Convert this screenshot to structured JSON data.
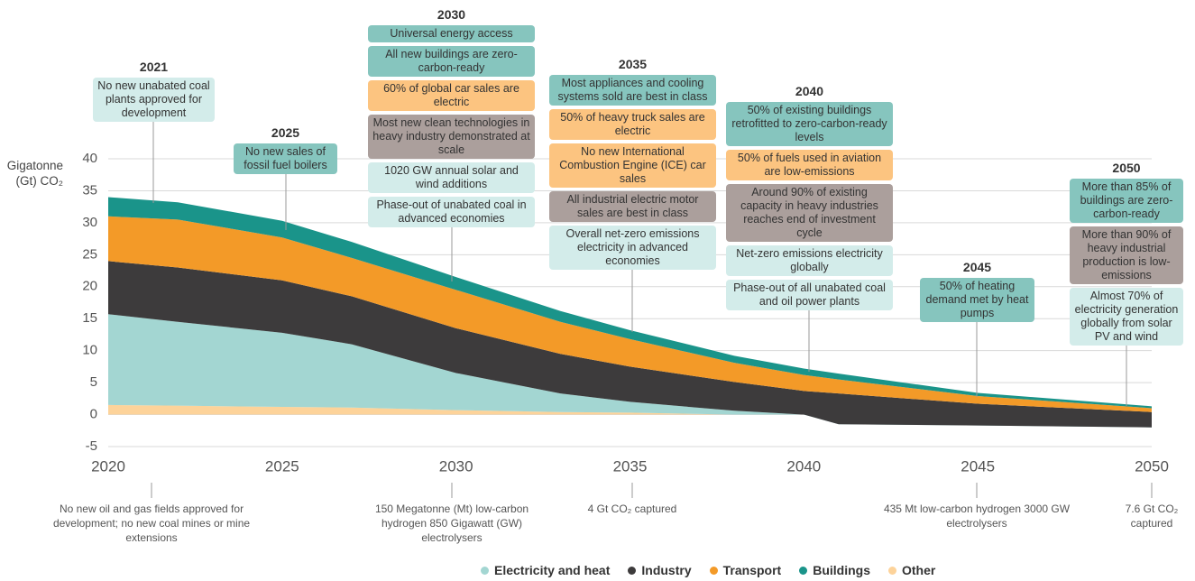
{
  "chart_data": {
    "type": "area",
    "stacked": true,
    "y_label": "Gigatonne (Gt) CO₂",
    "x": [
      2020,
      2022,
      2025,
      2027,
      2030,
      2033,
      2035,
      2038,
      2040,
      2041,
      2045,
      2050
    ],
    "xlim": [
      2020,
      2050
    ],
    "xticks": [
      2020,
      2025,
      2030,
      2035,
      2040,
      2045,
      2050
    ],
    "ylim": [
      -5,
      40
    ],
    "yticks": [
      -5,
      0,
      5,
      10,
      15,
      20,
      25,
      30,
      35,
      40
    ],
    "grid": true,
    "series": [
      {
        "name": "Other",
        "color": "#fdd39a",
        "values": [
          1.5,
          1.4,
          1.2,
          1.1,
          0.7,
          0.4,
          0.3,
          0,
          0,
          0,
          0,
          0
        ]
      },
      {
        "name": "Electricity and heat",
        "color": "#a3d6d2",
        "values": [
          14.2,
          13.1,
          11.6,
          9.9,
          5.8,
          2.9,
          1.7,
          0.6,
          0,
          -1.5,
          -1.7,
          -2
        ]
      },
      {
        "name": "Industry",
        "color": "#3d3b3c",
        "values": [
          8.3,
          8.5,
          8.2,
          7.5,
          7,
          6.2,
          5.5,
          4.5,
          3.7,
          4.8,
          3.4,
          2.4
        ]
      },
      {
        "name": "Transport",
        "color": "#f39a28",
        "values": [
          7,
          7.5,
          6.7,
          6,
          6,
          5,
          4.3,
          3,
          2.5,
          2.2,
          1.2,
          0.6
        ]
      },
      {
        "name": "Buildings",
        "color": "#1a948a",
        "values": [
          3,
          2.7,
          2.6,
          2.5,
          2,
          1.7,
          1.4,
          1.1,
          1,
          0.9,
          0.5,
          0.3
        ]
      }
    ],
    "legend_order": [
      1,
      2,
      3,
      4,
      0
    ],
    "milestones": [
      {
        "year": "2021",
        "items": [
          {
            "text": "No new unabated coal plants approved for development",
            "color": "#d3ecea"
          }
        ]
      },
      {
        "year": "2025",
        "items": [
          {
            "text": "No new sales of fossil fuel boilers",
            "color": "#86c5be"
          }
        ]
      },
      {
        "year": "2030",
        "items": [
          {
            "text": "Universal energy access",
            "color": "#86c5be"
          },
          {
            "text": "All new buildings are zero-carbon-ready",
            "color": "#86c5be"
          },
          {
            "text": "60% of global car sales are electric",
            "color": "#fcc480"
          },
          {
            "text": "Most new clean technologies in heavy industry demonstrated at scale",
            "color": "#ab9f9c"
          },
          {
            "text": "1020 GW annual solar and wind additions",
            "color": "#d3ecea"
          },
          {
            "text": "Phase-out of unabated coal in advanced economies",
            "color": "#d3ecea"
          }
        ]
      },
      {
        "year": "2035",
        "items": [
          {
            "text": "Most appliances and cooling systems sold are best in class",
            "color": "#86c5be"
          },
          {
            "text": "50% of heavy truck sales are electric",
            "color": "#fcc480"
          },
          {
            "text": "No new International Combustion Engine (ICE) car sales",
            "color": "#fcc480"
          },
          {
            "text": "All industrial electric motor sales are best in class",
            "color": "#ab9f9c"
          },
          {
            "text": "Overall net-zero emissions electricity in advanced economies",
            "color": "#d3ecea"
          }
        ]
      },
      {
        "year": "2040",
        "items": [
          {
            "text": "50% of existing buildings retrofitted to zero-carbon-ready levels",
            "color": "#86c5be"
          },
          {
            "text": "50% of fuels used in aviation are low-emissions",
            "color": "#fcc480"
          },
          {
            "text": "Around 90% of existing capacity in heavy industries reaches end of investment cycle",
            "color": "#ab9f9c"
          },
          {
            "text": "Net-zero emissions electricity globally",
            "color": "#d3ecea"
          },
          {
            "text": "Phase-out of all unabated coal and oil power plants",
            "color": "#d3ecea"
          }
        ]
      },
      {
        "year": "2045",
        "items": [
          {
            "text": "50% of heating demand met by heat pumps",
            "color": "#86c5be"
          }
        ]
      },
      {
        "year": "2050",
        "items": [
          {
            "text": "More than 85% of buildings are zero-carbon-ready",
            "color": "#86c5be"
          },
          {
            "text": "More than 90% of heavy industrial production is low-emissions",
            "color": "#ab9f9c"
          },
          {
            "text": "Almost 70% of electricity generation globally from solar PV and wind",
            "color": "#d3ecea"
          }
        ]
      }
    ],
    "notes": [
      "No new oil and gas fields approved for development; no new coal mines or mine extensions",
      "150 Megatonne (Mt) low-carbon hydrogen 850 Gigawatt (GW) electrolysers",
      "4 Gt CO₂ captured",
      "435 Mt low-carbon hydrogen 3000 GW electrolysers",
      "7.6 Gt CO₂ captured"
    ]
  }
}
